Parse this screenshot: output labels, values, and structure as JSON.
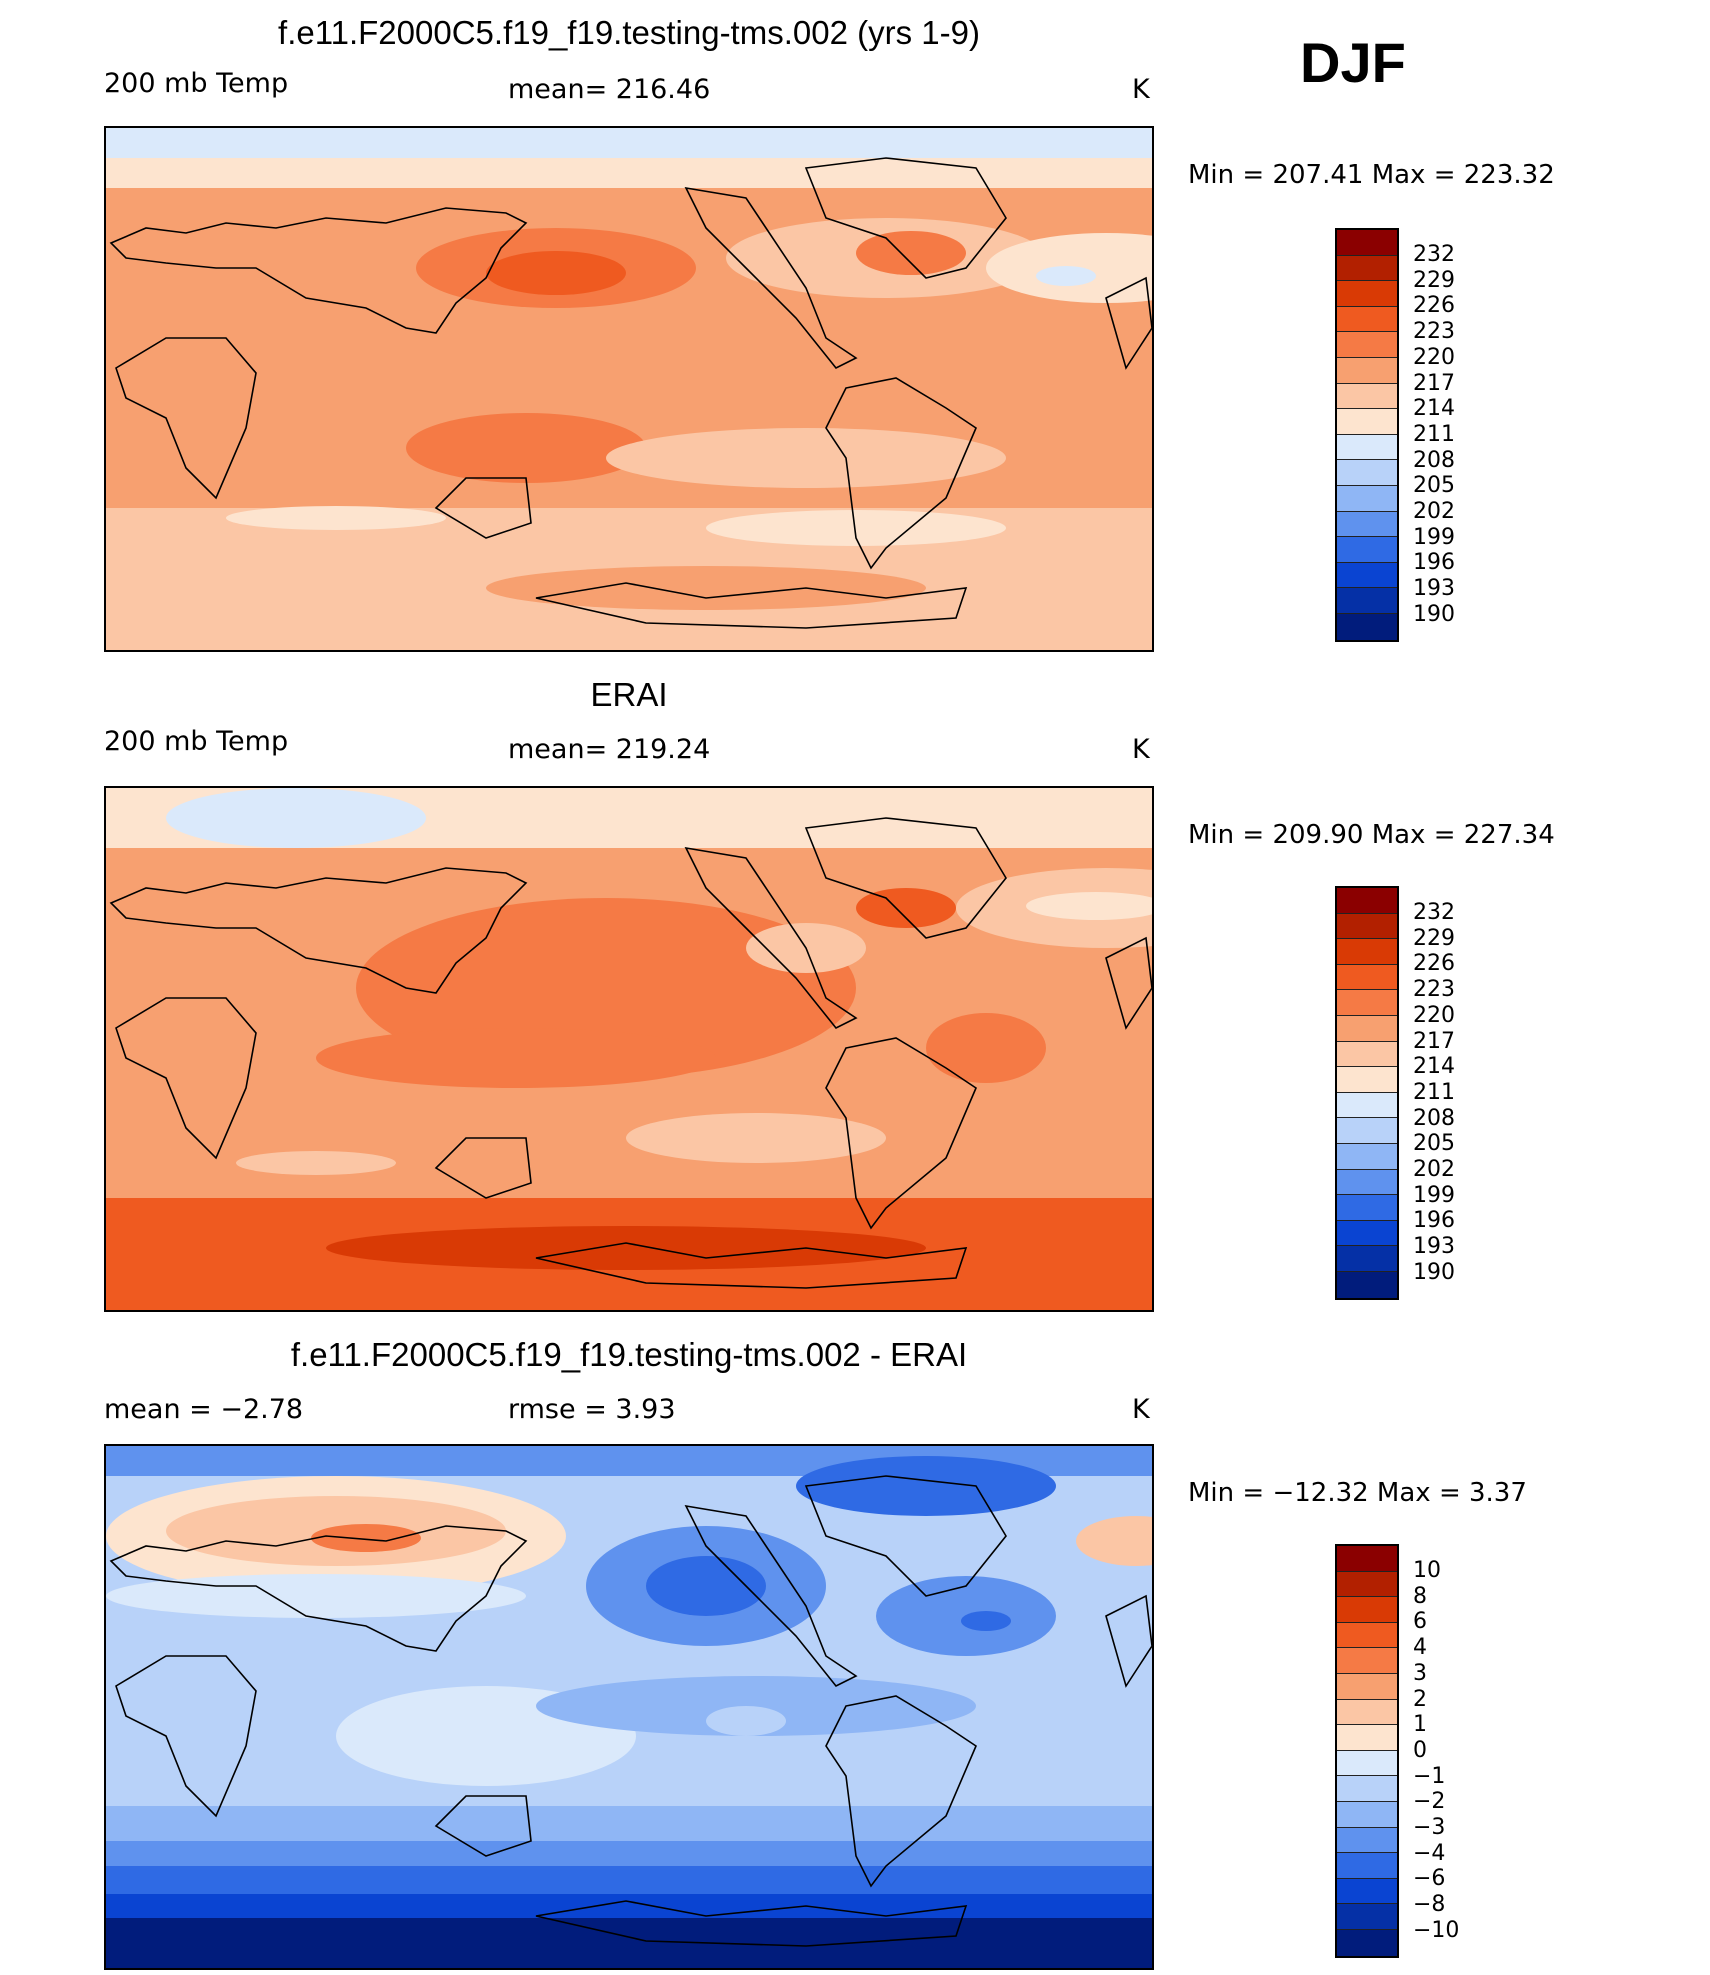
{
  "season": "DJF",
  "panels": [
    {
      "title": "f.e11.F2000C5.f19_f19.testing-tms.002 (yrs 1-9)",
      "left_label": "200 mb Temp",
      "center_label": "mean=  216.46",
      "units": "K",
      "minmax": "Min  =  207.41  Max  =  223.32"
    },
    {
      "title": "ERAI",
      "left_label": "200 mb Temp",
      "center_label": "mean=  219.24",
      "units": "K",
      "minmax": "Min  =  209.90  Max  =  227.34"
    },
    {
      "title": "f.e11.F2000C5.f19_f19.testing-tms.002 - ERAI",
      "left_label": "mean =    −2.78",
      "center_label": "rmse =     3.93",
      "units": "K",
      "minmax": "Min  =  −12.32  Max  =     3.37"
    }
  ],
  "colorbar_abs": {
    "levels": [
      "232",
      "229",
      "226",
      "223",
      "220",
      "217",
      "214",
      "211",
      "208",
      "205",
      "202",
      "199",
      "196",
      "193",
      "190"
    ],
    "colors": [
      "#8b0000",
      "#b22000",
      "#d93a05",
      "#ef5a20",
      "#f57a45",
      "#f7a070",
      "#fbc6a5",
      "#fde4cf",
      "#dae9fb",
      "#b8d2f9",
      "#8fb6f5",
      "#5f92ee",
      "#2f6ae4",
      "#0a44d2",
      "#0530a6",
      "#011c7c"
    ]
  },
  "colorbar_diff": {
    "levels": [
      "10",
      "8",
      "6",
      "4",
      "3",
      "2",
      "1",
      "0",
      "−1",
      "−2",
      "−3",
      "−4",
      "−6",
      "−8",
      "−10"
    ],
    "colors": [
      "#8b0000",
      "#b22000",
      "#d93a05",
      "#ef5a20",
      "#f57a45",
      "#f7a070",
      "#fbc6a5",
      "#fde4cf",
      "#dae9fb",
      "#b8d2f9",
      "#8fb6f5",
      "#5f92ee",
      "#2f6ae4",
      "#0a44d2",
      "#0530a6",
      "#011c7c"
    ]
  }
}
